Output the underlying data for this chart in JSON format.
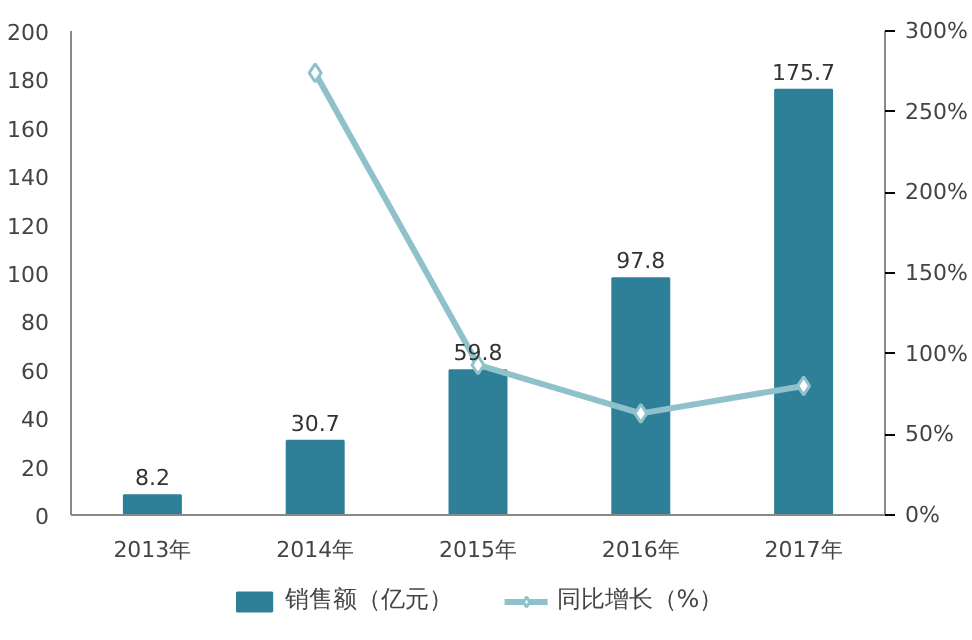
{
  "chart_data": {
    "type": "bar",
    "categories": [
      "2013年",
      "2014年",
      "2015年",
      "2016年",
      "2017年"
    ],
    "series": [
      {
        "name": "销售额（亿元）",
        "type": "bar",
        "color": "#2e7f98",
        "values": [
          8.2,
          30.7,
          59.8,
          97.8,
          175.7
        ],
        "value_labels": [
          "8.2",
          "30.7",
          "59.8",
          "97.8",
          "175.7"
        ]
      },
      {
        "name": "同比增长（%）",
        "type": "line",
        "axis": "y2",
        "color": "#8fc1cb",
        "marker": "diamond",
        "line_style": "solid",
        "values": [
          null,
          274,
          93,
          63,
          80
        ]
      }
    ],
    "ylim": [
      0,
      200
    ],
    "yticks": [
      0,
      20,
      40,
      60,
      80,
      100,
      120,
      140,
      160,
      180,
      200
    ],
    "y2lim": [
      0,
      300
    ],
    "y2ticks": [
      {
        "value": 0,
        "label": "0%"
      },
      {
        "value": 50,
        "label": "50%"
      },
      {
        "value": 100,
        "label": "100%"
      },
      {
        "value": 150,
        "label": "150%"
      },
      {
        "value": 200,
        "label": "200%"
      },
      {
        "value": 250,
        "label": "250%"
      },
      {
        "value": 300,
        "label": "300%"
      }
    ],
    "grid": false,
    "legend": "bottom"
  }
}
